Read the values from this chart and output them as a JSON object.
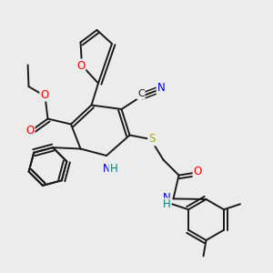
{
  "bg_color": "#ececec",
  "bond_color": "#1a1a1a",
  "bond_width": 1.4,
  "dbo": 0.012,
  "atom_colors": {
    "O": "#ff0000",
    "N": "#0000cc",
    "S": "#aaaa00",
    "C": "#1a1a1a",
    "H": "#008080"
  },
  "fs": 8.5,
  "figsize": [
    3.0,
    3.0
  ],
  "dpi": 100
}
